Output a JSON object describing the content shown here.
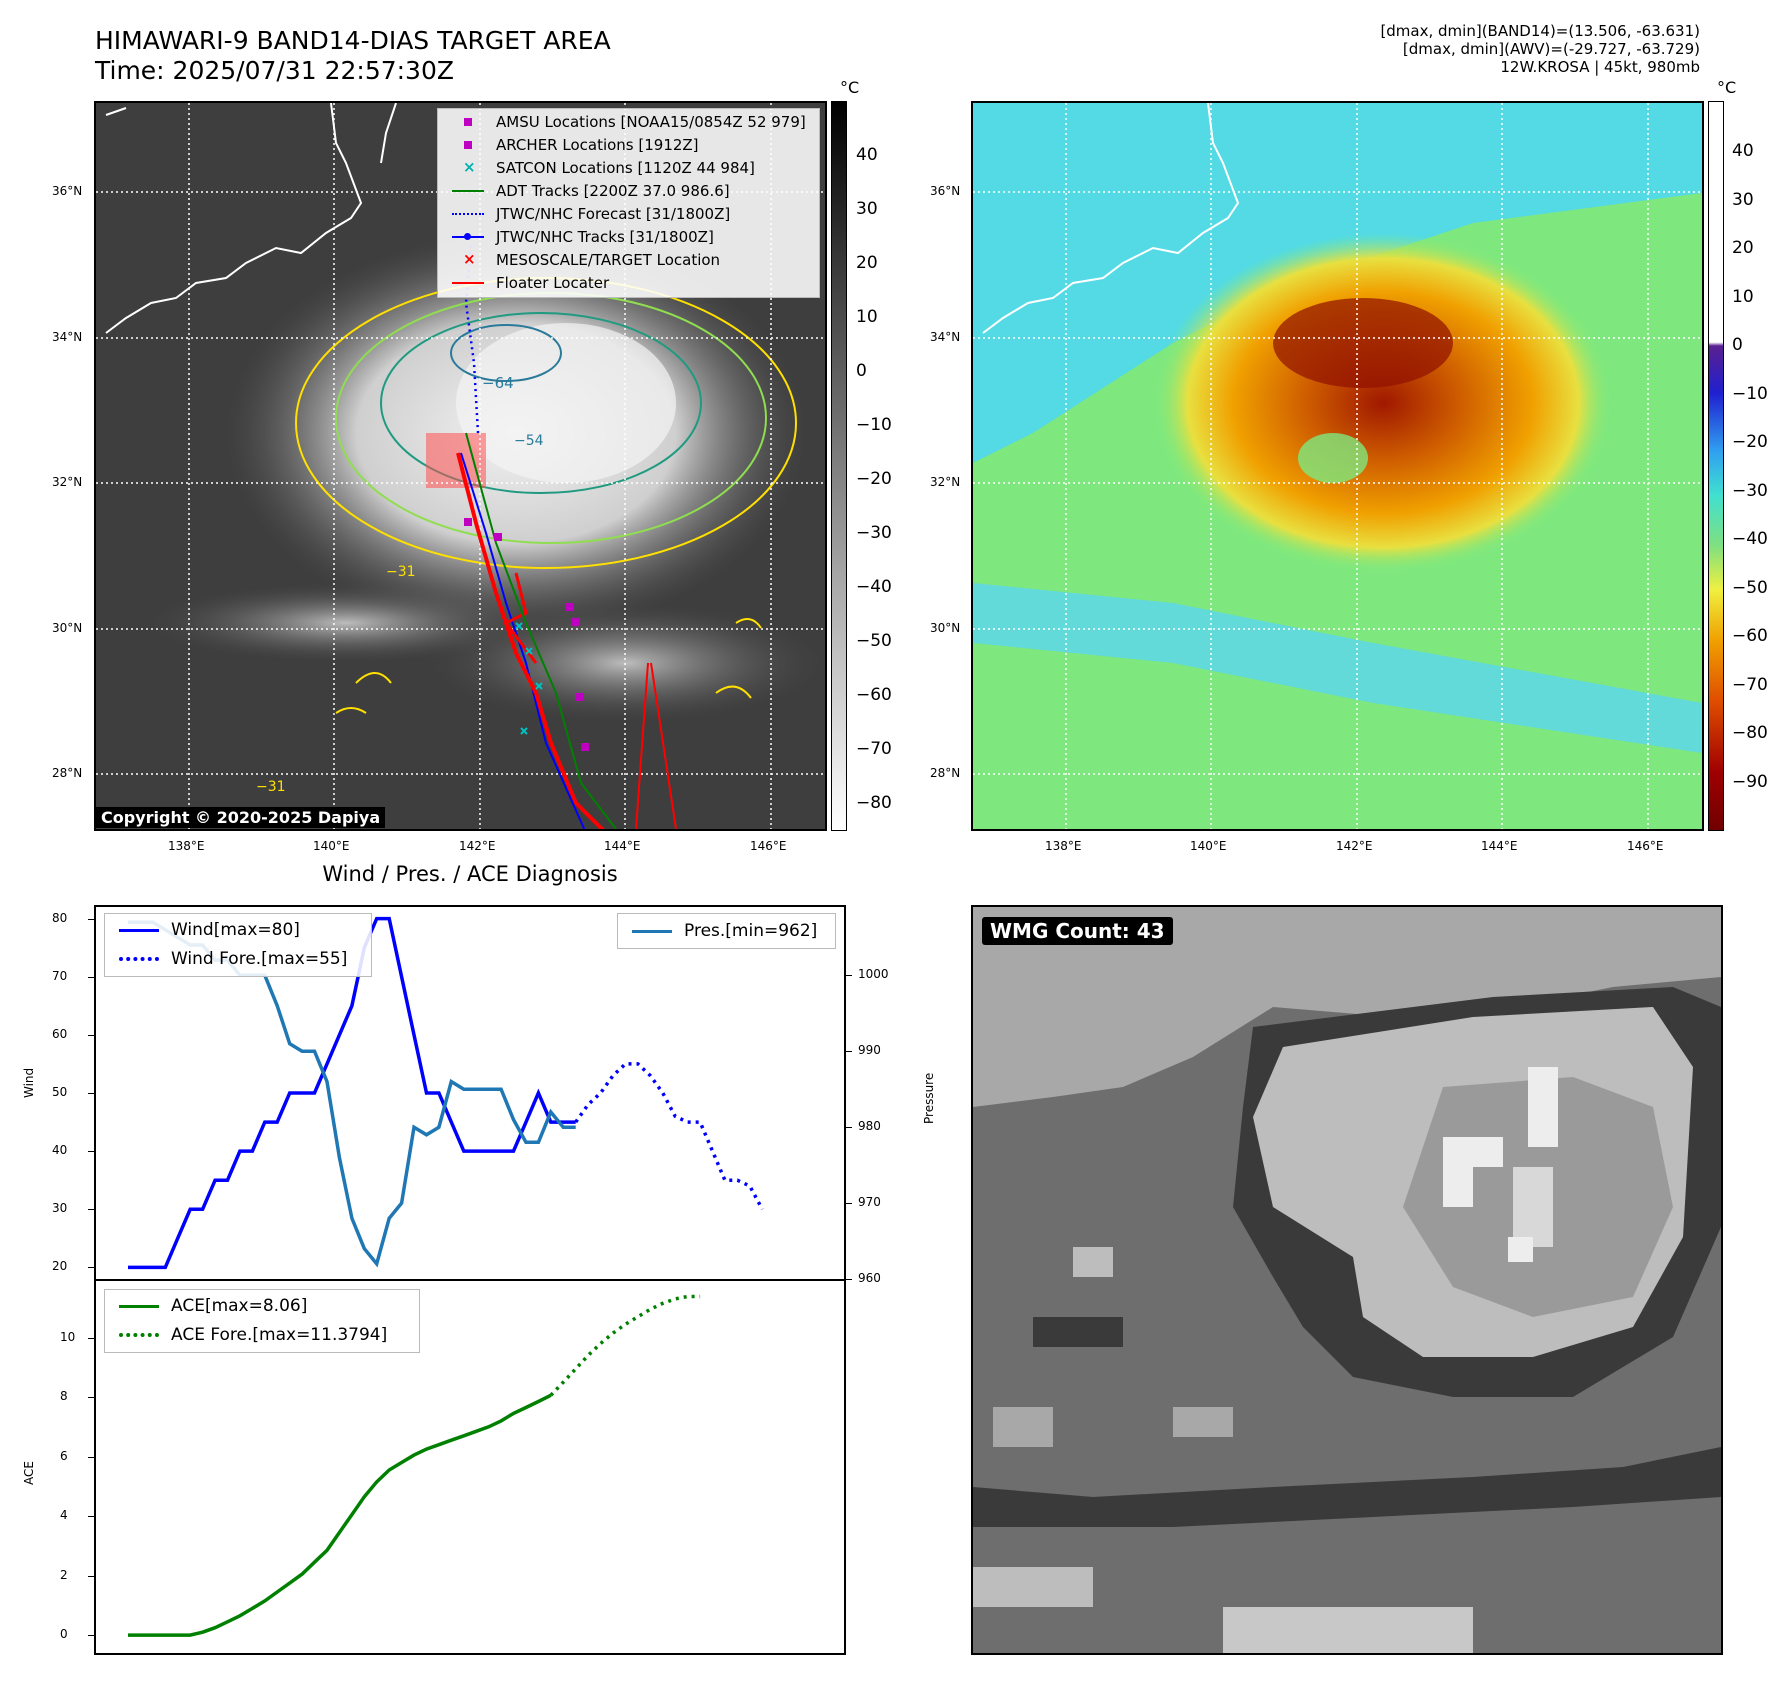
{
  "header": {
    "title": "HIMAWARI-9 BAND14-DIAS TARGET AREA",
    "time": "Time: 2025/07/31 22:57:30Z",
    "info_line1": "[dmax, dmin](BAND14)=(13.506, -63.631)",
    "info_line2": "[dmax, dmin](AWV)=(-29.727, -63.729)",
    "info_line3": "12W.KROSA | 45kt, 980mb"
  },
  "map_ir": {
    "lat_labels": [
      "36°N",
      "34°N",
      "32°N",
      "30°N",
      "28°N"
    ],
    "lon_labels": [
      "138°E",
      "140°E",
      "142°E",
      "144°E",
      "146°E"
    ],
    "contour_labels": [
      "−64",
      "−54",
      "−31",
      "−31"
    ],
    "copyright": "Copyright © 2020-2025 Dapiya",
    "legend": [
      {
        "label": "AMSU Locations [NOAA15/0854Z 52 979]",
        "marker": "square",
        "color": "#c000c0"
      },
      {
        "label": "ARCHER Locations [1912Z]",
        "marker": "square",
        "color": "#c000c0"
      },
      {
        "label": "SATCON Locations [1120Z 44 984]",
        "marker": "x",
        "color": "#00b0b0"
      },
      {
        "label": "ADT Tracks [2200Z 37.0 986.6]",
        "marker": "line",
        "color": "#008000"
      },
      {
        "label": "JTWC/NHC Forecast [31/1800Z]",
        "marker": "dotted",
        "color": "#0000ff"
      },
      {
        "label": "JTWC/NHC Tracks [31/1800Z]",
        "marker": "line-dot",
        "color": "#0000ff"
      },
      {
        "label": "MESOSCALE/TARGET Location",
        "marker": "x",
        "color": "#ff0000"
      },
      {
        "label": "Floater Locater",
        "marker": "line",
        "color": "#ff0000"
      }
    ],
    "colorbar_unit": "°C",
    "colorbar_ticks": [
      "40",
      "30",
      "20",
      "10",
      "0",
      "−10",
      "−20",
      "−30",
      "−40",
      "−50",
      "−60",
      "−70",
      "−80"
    ]
  },
  "map_awv": {
    "lat_labels": [
      "36°N",
      "34°N",
      "32°N",
      "30°N",
      "28°N"
    ],
    "lon_labels": [
      "138°E",
      "140°E",
      "142°E",
      "144°E",
      "146°E"
    ],
    "colorbar_unit": "°C",
    "colorbar_ticks": [
      "40",
      "30",
      "20",
      "10",
      "0",
      "−10",
      "−20",
      "−30",
      "−40",
      "−50",
      "−60",
      "−70",
      "−80",
      "−90"
    ]
  },
  "chart_data": [
    {
      "type": "line",
      "title": "Wind / Pres. / ACE Diagnosis",
      "ylabel": "Wind",
      "ylabel_right": "Pressure",
      "ylim": [
        18,
        82
      ],
      "ylim_right": [
        960,
        1009
      ],
      "yticks": [
        20,
        30,
        40,
        50,
        60,
        70,
        80
      ],
      "yticks_right": [
        960,
        970,
        980,
        990,
        1000
      ],
      "x_count": 56,
      "series": [
        {
          "name": "Wind[max=80]",
          "color": "#0000ff",
          "style": "solid",
          "x0": 0,
          "values": [
            20,
            20,
            20,
            20,
            25,
            30,
            30,
            35,
            35,
            40,
            40,
            45,
            45,
            50,
            50,
            50,
            55,
            60,
            65,
            75,
            80,
            80,
            70,
            60,
            50,
            50,
            45,
            40,
            40,
            40,
            40,
            40,
            45,
            50,
            45,
            45,
            45
          ]
        },
        {
          "name": "Wind Fore.[max=55]",
          "color": "#0000ff",
          "style": "dotted",
          "x0": 36,
          "values": [
            45,
            48,
            50,
            53,
            55,
            55,
            53,
            50,
            46,
            45,
            45,
            40,
            35,
            35,
            34,
            30
          ]
        },
        {
          "name": "Pres.[min=962]",
          "color": "#1f77b4",
          "style": "solid",
          "axis": "right",
          "x0": 0,
          "values": [
            1007,
            1007,
            1007,
            1006,
            1005,
            1004,
            1004,
            1002,
            1002,
            1000,
            1000,
            1000,
            996,
            991,
            990,
            990,
            986,
            976,
            968,
            964,
            962,
            968,
            970,
            980,
            979,
            980,
            986,
            985,
            985,
            985,
            985,
            981,
            978,
            978,
            982,
            980,
            980
          ]
        }
      ]
    },
    {
      "type": "line",
      "ylabel": "ACE",
      "ylim": [
        -0.6,
        11.9
      ],
      "yticks": [
        0,
        2,
        4,
        6,
        8,
        10
      ],
      "x_count": 56,
      "series": [
        {
          "name": "ACE[max=8.06]",
          "color": "#008000",
          "style": "solid",
          "x0": 0,
          "values": [
            0,
            0,
            0,
            0,
            0,
            0,
            0.1,
            0.25,
            0.45,
            0.65,
            0.9,
            1.15,
            1.45,
            1.75,
            2.05,
            2.45,
            2.85,
            3.45,
            4.05,
            4.65,
            5.15,
            5.55,
            5.8,
            6.05,
            6.25,
            6.4,
            6.55,
            6.7,
            6.85,
            7.0,
            7.2,
            7.45,
            7.65,
            7.85,
            8.06
          ]
        },
        {
          "name": "ACE Fore.[max=11.3794]",
          "color": "#008000",
          "style": "dotted",
          "x0": 34,
          "values": [
            8.06,
            8.5,
            8.95,
            9.4,
            9.8,
            10.15,
            10.45,
            10.7,
            10.95,
            11.15,
            11.3,
            11.38,
            11.38
          ]
        }
      ]
    }
  ],
  "wmg": {
    "label": "WMG Count: 43"
  }
}
